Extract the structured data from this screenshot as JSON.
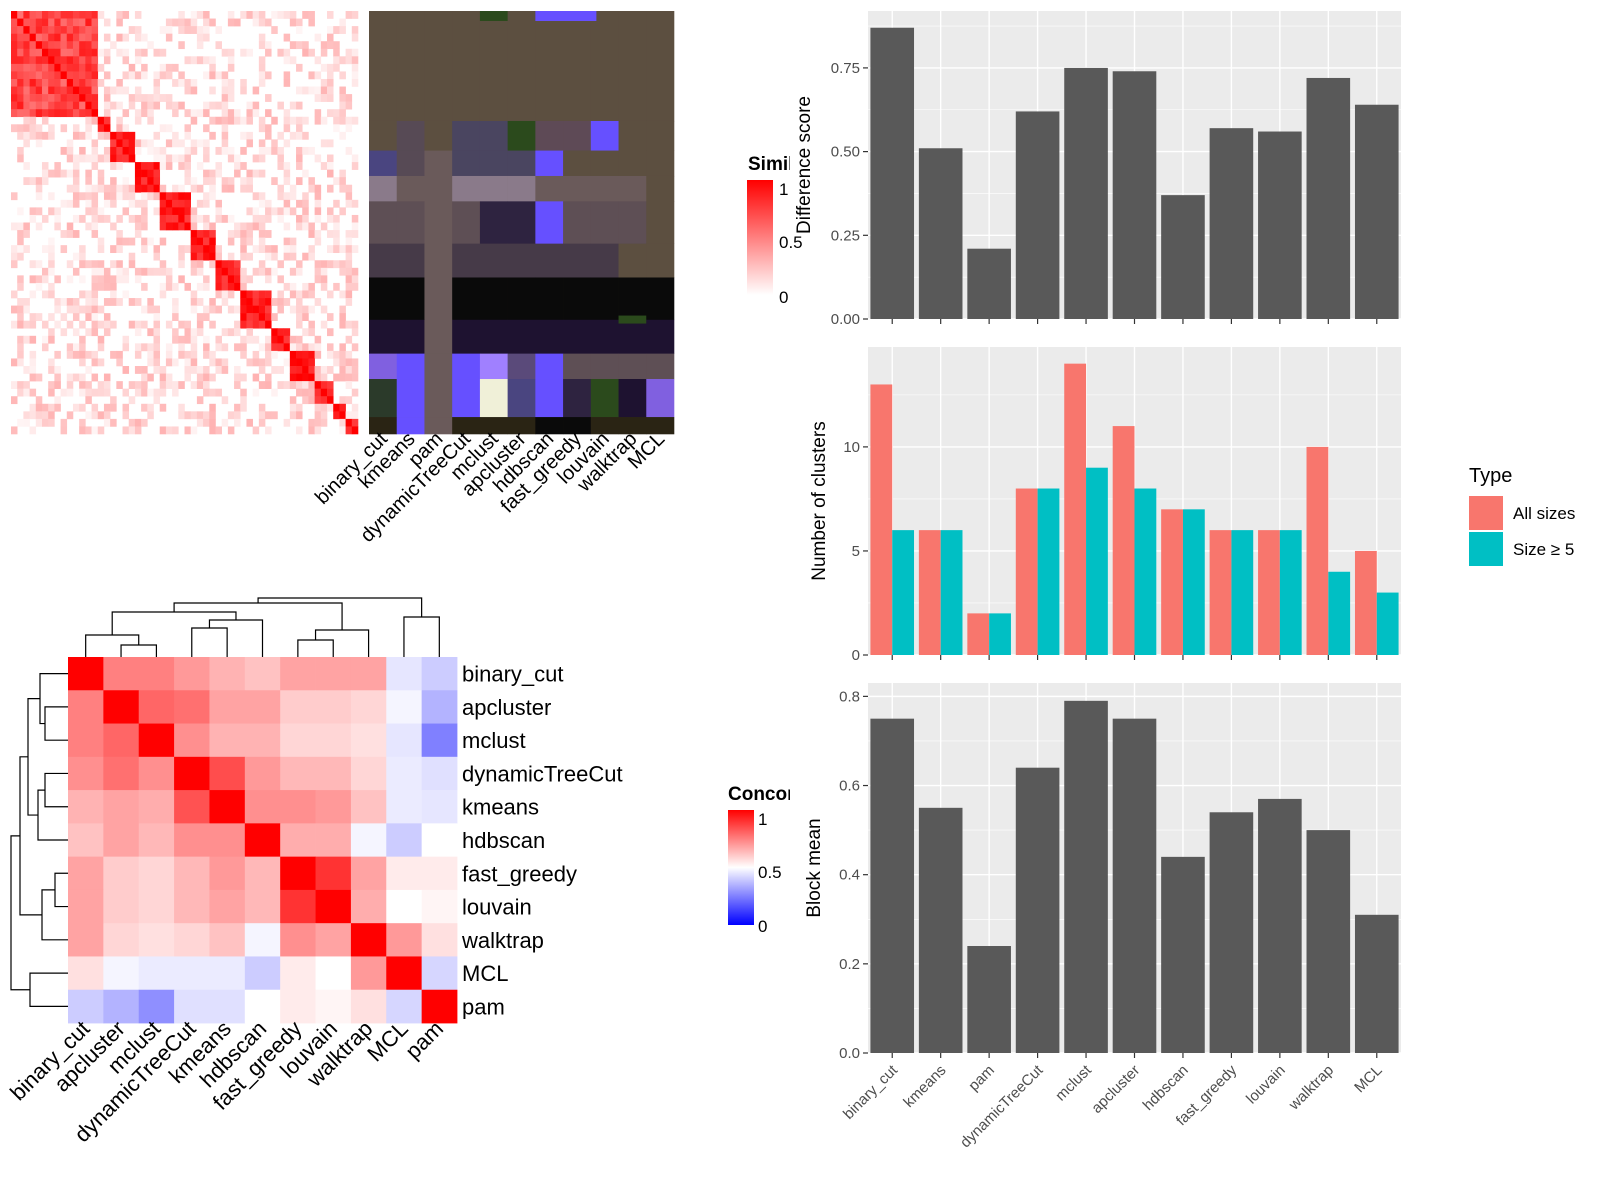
{
  "methods_heat": [
    "binary_cut",
    "kmeans",
    "pam",
    "dynamicTreeCut",
    "mclust",
    "apcluster",
    "hdbscan",
    "fast_greedy",
    "louvain",
    "walktrap",
    "MCL"
  ],
  "legends": {
    "similarity_title": "Simila",
    "similarity_ticks": [
      "1",
      "0.5",
      "0"
    ],
    "concordance_title": "Concorc",
    "concordance_ticks": [
      "1",
      "0.5",
      "0"
    ]
  },
  "colors": {
    "red": "#ff0000",
    "white": "#ffffff",
    "blue": "#0000ff",
    "bar_gray": "#595959",
    "panel_bg": "#ebebeb",
    "all_sizes": "#f8766d",
    "size5": "#00bfc4"
  },
  "chart_data": [
    {
      "type": "heatmap",
      "name": "concordance",
      "rows": [
        "binary_cut",
        "apcluster",
        "mclust",
        "dynamicTreeCut",
        "kmeans",
        "hdbscan",
        "fast_greedy",
        "louvain",
        "walktrap",
        "MCL",
        "pam"
      ],
      "columns": [
        "binary_cut",
        "apcluster",
        "mclust",
        "dynamicTreeCut",
        "kmeans",
        "hdbscan",
        "fast_greedy",
        "louvain",
        "walktrap",
        "MCL",
        "pam"
      ],
      "values": [
        [
          1.0,
          0.75,
          0.75,
          0.7,
          0.65,
          0.62,
          0.68,
          0.68,
          0.68,
          0.45,
          0.4
        ],
        [
          0.75,
          1.0,
          0.8,
          0.78,
          0.68,
          0.68,
          0.6,
          0.6,
          0.58,
          0.48,
          0.35
        ],
        [
          0.75,
          0.8,
          1.0,
          0.72,
          0.65,
          0.65,
          0.58,
          0.58,
          0.56,
          0.45,
          0.25
        ],
        [
          0.72,
          0.78,
          0.72,
          1.0,
          0.85,
          0.7,
          0.64,
          0.64,
          0.58,
          0.46,
          0.44
        ],
        [
          0.65,
          0.68,
          0.66,
          0.84,
          1.0,
          0.72,
          0.72,
          0.7,
          0.62,
          0.46,
          0.45
        ],
        [
          0.62,
          0.68,
          0.64,
          0.72,
          0.72,
          1.0,
          0.66,
          0.66,
          0.48,
          0.4,
          0.5
        ],
        [
          0.68,
          0.6,
          0.58,
          0.64,
          0.7,
          0.64,
          1.0,
          0.9,
          0.68,
          0.54,
          0.54
        ],
        [
          0.68,
          0.6,
          0.58,
          0.64,
          0.68,
          0.64,
          0.9,
          1.0,
          0.66,
          0.5,
          0.52
        ],
        [
          0.68,
          0.58,
          0.56,
          0.58,
          0.62,
          0.48,
          0.72,
          0.68,
          1.0,
          0.7,
          0.56
        ],
        [
          0.56,
          0.48,
          0.46,
          0.46,
          0.46,
          0.4,
          0.54,
          0.5,
          0.7,
          1.0,
          0.42
        ],
        [
          0.4,
          0.35,
          0.28,
          0.44,
          0.44,
          0.5,
          0.54,
          0.52,
          0.56,
          0.42,
          1.0
        ]
      ],
      "legend_title": "Concorc",
      "scale": [
        0,
        0.5,
        1
      ]
    },
    {
      "type": "bar",
      "name": "difference",
      "categories": [
        "binary_cut",
        "kmeans",
        "pam",
        "dynamicTreeCut",
        "mclust",
        "apcluster",
        "hdbscan",
        "fast_greedy",
        "louvain",
        "walktrap",
        "MCL"
      ],
      "values": [
        0.87,
        0.51,
        0.21,
        0.62,
        0.75,
        0.74,
        0.37,
        0.57,
        0.56,
        0.72,
        0.64
      ],
      "ylabel": "Difference score",
      "ylim": [
        0,
        0.92
      ],
      "yticks": [
        "0.00",
        "0.25",
        "0.50",
        "0.75"
      ]
    },
    {
      "type": "bar",
      "name": "clusters",
      "categories": [
        "binary_cut",
        "kmeans",
        "pam",
        "dynamicTreeCut",
        "mclust",
        "apcluster",
        "hdbscan",
        "fast_greedy",
        "louvain",
        "walktrap",
        "MCL"
      ],
      "series": [
        {
          "name": "All sizes",
          "values": [
            13,
            6,
            2,
            8,
            14,
            11,
            7,
            6,
            6,
            10,
            5
          ]
        },
        {
          "name": "Size ≥ 5",
          "values": [
            6,
            6,
            2,
            8,
            9,
            8,
            7,
            6,
            6,
            4,
            3
          ]
        }
      ],
      "ylabel": "Number of clusters",
      "ylim": [
        0,
        14.8
      ],
      "yticks": [
        "0",
        "5",
        "10"
      ],
      "legend_title": "Type",
      "legend_position": "right"
    },
    {
      "type": "bar",
      "name": "blockmean",
      "categories": [
        "binary_cut",
        "kmeans",
        "pam",
        "dynamicTreeCut",
        "mclust",
        "apcluster",
        "hdbscan",
        "fast_greedy",
        "louvain",
        "walktrap",
        "MCL"
      ],
      "values": [
        0.75,
        0.55,
        0.24,
        0.64,
        0.79,
        0.75,
        0.44,
        0.54,
        0.57,
        0.5,
        0.31
      ],
      "ylabel": "Block mean",
      "ylim": [
        0,
        0.83
      ],
      "yticks": [
        "0.0",
        "0.2",
        "0.4",
        "0.6",
        "0.8"
      ]
    }
  ]
}
